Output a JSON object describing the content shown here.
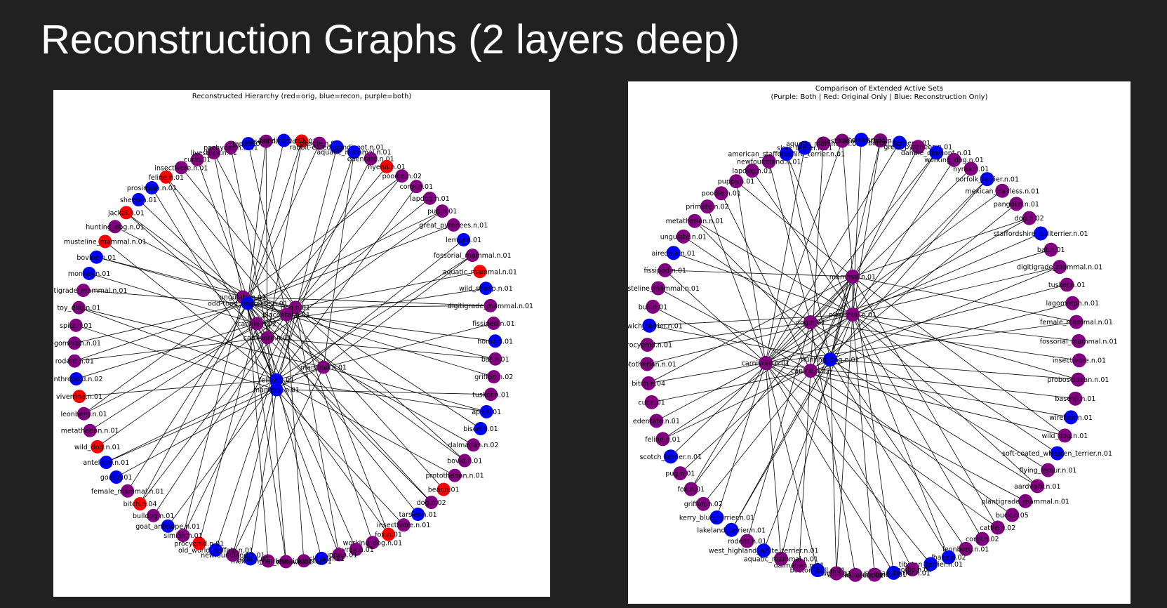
{
  "slide": {
    "title": "Reconstruction Graphs (2 layers deep)"
  },
  "colors": {
    "background": "#212121",
    "original_only": "#ff0000",
    "reconstruction_only": "#0000ff",
    "both": "#800080",
    "edge": "#000000"
  },
  "graphs": [
    {
      "title": "Reconstructed Hierarchy (red=orig, blue=recon, purple=both)",
      "hubs": [
        {
          "label": "ungulate.n.01",
          "kind": "both"
        },
        {
          "label": "odd-toed_ungulate.n.01",
          "kind": "recon"
        },
        {
          "label": "canine.n.02",
          "kind": "both"
        },
        {
          "label": "carnivore.n.01",
          "kind": "both"
        },
        {
          "label": "dog.n.01",
          "kind": "both"
        },
        {
          "label": "placental.n.01",
          "kind": "both"
        },
        {
          "label": "mammal.n.01",
          "kind": "both"
        },
        {
          "label": "feline.n.01",
          "kind": "recon"
        },
        {
          "label": "mammal.n.01",
          "kind": "recon"
        }
      ],
      "ring": [
        {
          "label": "wolf.n.01",
          "kind": "orig"
        },
        {
          "label": "poodle.n.01",
          "kind": "both"
        },
        {
          "label": "rabbit-eared_bandicoot.n.01",
          "kind": "recon"
        },
        {
          "label": "aquatic_mammal.n.01",
          "kind": "recon"
        },
        {
          "label": "edentate.n.01",
          "kind": "both"
        },
        {
          "label": "hyena.n.01",
          "kind": "orig"
        },
        {
          "label": "poodle.n.02",
          "kind": "both"
        },
        {
          "label": "corgi.n.01",
          "kind": "both"
        },
        {
          "label": "lapdog.n.01",
          "kind": "both"
        },
        {
          "label": "pug.n.01",
          "kind": "both"
        },
        {
          "label": "great_pyrenees.n.01",
          "kind": "both"
        },
        {
          "label": "lemur.n.01",
          "kind": "recon"
        },
        {
          "label": "fossorial_mammal.n.01",
          "kind": "both"
        },
        {
          "label": "aquatic_mammal.n.01",
          "kind": "orig"
        },
        {
          "label": "wild_sheep.n.01",
          "kind": "recon"
        },
        {
          "label": "digitigrade_mammal.n.01",
          "kind": "both"
        },
        {
          "label": "fissiped.n.01",
          "kind": "both"
        },
        {
          "label": "homo.n.01",
          "kind": "recon"
        },
        {
          "label": "bat.n.01",
          "kind": "both"
        },
        {
          "label": "griffon.n.02",
          "kind": "both"
        },
        {
          "label": "tusker.n.01",
          "kind": "both"
        },
        {
          "label": "ape.n.01",
          "kind": "recon"
        },
        {
          "label": "bison.n.01",
          "kind": "recon"
        },
        {
          "label": "dalmatian.n.02",
          "kind": "both"
        },
        {
          "label": "bovid.n.01",
          "kind": "both"
        },
        {
          "label": "prototherian.n.01",
          "kind": "both"
        },
        {
          "label": "bear.n.01",
          "kind": "orig"
        },
        {
          "label": "dog.n.02",
          "kind": "both"
        },
        {
          "label": "tarsier.n.01",
          "kind": "recon"
        },
        {
          "label": "insectivore.n.01",
          "kind": "both"
        },
        {
          "label": "fox.n.01",
          "kind": "orig"
        },
        {
          "label": "working_dog.n.01",
          "kind": "both"
        },
        {
          "label": "hyrax.n.01",
          "kind": "both"
        },
        {
          "label": "puppy.n.01",
          "kind": "both"
        },
        {
          "label": "musk_ox.n.01",
          "kind": "recon"
        },
        {
          "label": "unguiculata.n.01",
          "kind": "both"
        },
        {
          "label": "tree_shrew.n.01",
          "kind": "both"
        },
        {
          "label": "mexican_hairless.n.01",
          "kind": "both"
        },
        {
          "label": "hyena.n.01",
          "kind": "recon"
        },
        {
          "label": "newfoundland.n.01",
          "kind": "both"
        },
        {
          "label": "old_world_buffalo.n.01",
          "kind": "recon"
        },
        {
          "label": "procyonid.n.01",
          "kind": "orig"
        },
        {
          "label": "simian.n.01",
          "kind": "both"
        },
        {
          "label": "goat_antelope.n.01",
          "kind": "recon"
        },
        {
          "label": "bulldog.n.01",
          "kind": "both"
        },
        {
          "label": "bitch.n.04",
          "kind": "orig"
        },
        {
          "label": "female_mammal.n.01",
          "kind": "both"
        },
        {
          "label": "goat.n.01",
          "kind": "recon"
        },
        {
          "label": "antelope.n.01",
          "kind": "recon"
        },
        {
          "label": "wild_dog.n.01",
          "kind": "orig"
        },
        {
          "label": "metatherian.n.01",
          "kind": "both"
        },
        {
          "label": "leonberg.n.01",
          "kind": "both"
        },
        {
          "label": "viverrine.n.01",
          "kind": "orig"
        },
        {
          "label": "anthropoid.n.02",
          "kind": "recon"
        },
        {
          "label": "rodent.n.01",
          "kind": "both"
        },
        {
          "label": "lagomorph.n.01",
          "kind": "both"
        },
        {
          "label": "spitz.n.01",
          "kind": "both"
        },
        {
          "label": "toy_dog.n.01",
          "kind": "both"
        },
        {
          "label": "plantigrade_mammal.n.01",
          "kind": "both"
        },
        {
          "label": "monkey.n.01",
          "kind": "recon"
        },
        {
          "label": "bovine.n.01",
          "kind": "recon"
        },
        {
          "label": "musteline_mammal.n.01",
          "kind": "orig"
        },
        {
          "label": "hunting_dog.n.01",
          "kind": "both"
        },
        {
          "label": "jackal.n.01",
          "kind": "orig"
        },
        {
          "label": "sheep.n.01",
          "kind": "recon"
        },
        {
          "label": "prosimian.n.01",
          "kind": "recon"
        },
        {
          "label": "feline.n.01",
          "kind": "orig"
        },
        {
          "label": "insectivore.n.01",
          "kind": "both"
        },
        {
          "label": "cur.n.01",
          "kind": "both"
        },
        {
          "label": "livestock.n.01",
          "kind": "both"
        },
        {
          "label": "pachyderm.n.01",
          "kind": "both"
        },
        {
          "label": "tapir.n.01",
          "kind": "recon"
        },
        {
          "label": "basenji.n.01",
          "kind": "both"
        },
        {
          "label": "bandicoot.n.01",
          "kind": "recon"
        }
      ]
    },
    {
      "title": "Comparison of Extended Active Sets",
      "subtitle": "(Purple: Both | Red: Original Only | Blue: Reconstruction Only)",
      "hubs": [
        {
          "label": "mammal.n.01",
          "kind": "both"
        },
        {
          "label": "placental.n.01",
          "kind": "both"
        },
        {
          "label": "dog.n.01",
          "kind": "both"
        },
        {
          "label": "hunting_dog.n.01",
          "kind": "recon"
        },
        {
          "label": "carnivore.n.01",
          "kind": "both"
        },
        {
          "label": "canine.n.02",
          "kind": "both"
        }
      ],
      "ring": [
        {
          "label": "yearling.n.03",
          "kind": "both"
        },
        {
          "label": "border_terrier.n.01",
          "kind": "recon"
        },
        {
          "label": "great_pyrenees.n.01",
          "kind": "both"
        },
        {
          "label": "dandie_dinmont.n.01",
          "kind": "recon"
        },
        {
          "label": "working_dog.n.01",
          "kind": "both"
        },
        {
          "label": "hyrax.n.01",
          "kind": "both"
        },
        {
          "label": "norfolk_terrier.n.01",
          "kind": "recon"
        },
        {
          "label": "mexican_hairless.n.01",
          "kind": "both"
        },
        {
          "label": "pangolin.n.01",
          "kind": "both"
        },
        {
          "label": "dog.n.02",
          "kind": "both"
        },
        {
          "label": "staffordshire_bullterrier.n.01",
          "kind": "recon"
        },
        {
          "label": "bat.n.01",
          "kind": "both"
        },
        {
          "label": "digitigrade_mammal.n.01",
          "kind": "both"
        },
        {
          "label": "tusker.n.01",
          "kind": "both"
        },
        {
          "label": "lagomorph.n.01",
          "kind": "both"
        },
        {
          "label": "female_mammal.n.01",
          "kind": "both"
        },
        {
          "label": "fossorial_mammal.n.01",
          "kind": "both"
        },
        {
          "label": "insectivore.n.01",
          "kind": "both"
        },
        {
          "label": "proboscidean.n.01",
          "kind": "both"
        },
        {
          "label": "basenji.n.01",
          "kind": "both"
        },
        {
          "label": "wirehair.n.01",
          "kind": "recon"
        },
        {
          "label": "wild_dog.n.01",
          "kind": "both"
        },
        {
          "label": "soft-coated_wheaten_terrier.n.01",
          "kind": "recon"
        },
        {
          "label": "flying_lemur.n.01",
          "kind": "both"
        },
        {
          "label": "aardvark.n.01",
          "kind": "both"
        },
        {
          "label": "plantigrade_mammal.n.01",
          "kind": "both"
        },
        {
          "label": "buck.n.05",
          "kind": "both"
        },
        {
          "label": "cattle.n.02",
          "kind": "both"
        },
        {
          "label": "corgi.n.02",
          "kind": "both"
        },
        {
          "label": "leonberg.n.01",
          "kind": "both"
        },
        {
          "label": "lhasa.n.02",
          "kind": "recon"
        },
        {
          "label": "tibetan_terrier.n.01",
          "kind": "recon"
        },
        {
          "label": "poodle.n.01",
          "kind": "both"
        },
        {
          "label": "australian_terrier.n.01",
          "kind": "recon"
        },
        {
          "label": "newfoundland.n.01",
          "kind": "both"
        },
        {
          "label": "unguiculate.n.01",
          "kind": "both"
        },
        {
          "label": "wolf.n.01",
          "kind": "both"
        },
        {
          "label": "boston_bull.n.01",
          "kind": "recon"
        },
        {
          "label": "dalmatian.n.01",
          "kind": "both"
        },
        {
          "label": "aquatic_mammal.n.01",
          "kind": "both"
        },
        {
          "label": "west_highland_white_terrier.n.01",
          "kind": "recon"
        },
        {
          "label": "rodent.n.01",
          "kind": "both"
        },
        {
          "label": "lakeland_terrier.n.01",
          "kind": "recon"
        },
        {
          "label": "kerry_blue_terrier.n.01",
          "kind": "recon"
        },
        {
          "label": "griffon.n.02",
          "kind": "both"
        },
        {
          "label": "fox.n.01",
          "kind": "both"
        },
        {
          "label": "pug.n.01",
          "kind": "both"
        },
        {
          "label": "scotch_terrier.n.01",
          "kind": "recon"
        },
        {
          "label": "feline.n.01",
          "kind": "both"
        },
        {
          "label": "edentate.n.01",
          "kind": "both"
        },
        {
          "label": "cur.n.01",
          "kind": "both"
        },
        {
          "label": "bitch.n.04",
          "kind": "both"
        },
        {
          "label": "prototherian.n.01",
          "kind": "both"
        },
        {
          "label": "procyonid.n.01",
          "kind": "both"
        },
        {
          "label": "norwich_terrier.n.01",
          "kind": "recon"
        },
        {
          "label": "bull.n.01",
          "kind": "both"
        },
        {
          "label": "musteline_mammal.n.01",
          "kind": "both"
        },
        {
          "label": "fissiped.n.01",
          "kind": "both"
        },
        {
          "label": "airedale.n.01",
          "kind": "recon"
        },
        {
          "label": "ungulate.n.01",
          "kind": "both"
        },
        {
          "label": "metatherian.n.01",
          "kind": "both"
        },
        {
          "label": "primate.n.02",
          "kind": "both"
        },
        {
          "label": "poodle.n.01",
          "kind": "both"
        },
        {
          "label": "puppy.n.01",
          "kind": "both"
        },
        {
          "label": "lapdog.n.01",
          "kind": "both"
        },
        {
          "label": "newfoundland.n.01",
          "kind": "both"
        },
        {
          "label": "american_staffordshire_terrier.n.01",
          "kind": "recon"
        },
        {
          "label": "skye_terrier.n.01",
          "kind": "recon"
        },
        {
          "label": "aquatic_mammal.n.01",
          "kind": "both"
        },
        {
          "label": "livestock.n.01",
          "kind": "both"
        },
        {
          "label": "bullterrier.n.01",
          "kind": "recon"
        }
      ]
    }
  ]
}
